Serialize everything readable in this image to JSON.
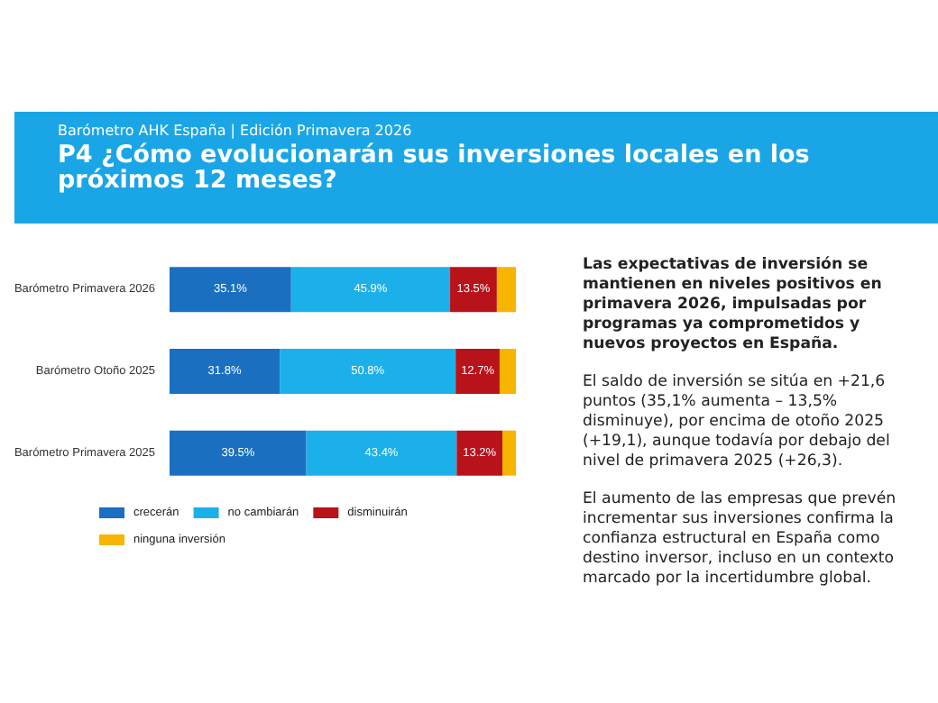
{
  "chart_data": {
    "type": "bar",
    "orientation": "horizontal",
    "stacked": true,
    "subtitle": "Barómetro AHK España | Edición Primavera 2026",
    "title": "P4 ¿Cómo evolucionarán sus inversiones locales en los próximos 12 meses?",
    "categories": [
      "Barómetro Primavera 2026",
      "Barómetro Otoño 2025",
      "Barómetro Primavera 2025"
    ],
    "xlim": [
      0,
      100
    ],
    "tick_labels": "y",
    "grid": false,
    "legend": "bottom",
    "series": [
      {
        "name": "crecerán",
        "color": "#1a6fc0",
        "values": [
          35.1,
          31.8,
          39.5
        ],
        "value_labels": [
          "35.1%",
          "31.8%",
          "39.5%"
        ]
      },
      {
        "name": "no cambiarán",
        "color": "#1cb0ea",
        "values": [
          45.9,
          50.8,
          43.4
        ],
        "value_labels": [
          "45.9%",
          "50.8%",
          "43.4%"
        ]
      },
      {
        "name": "disminuirán",
        "color": "#b8121b",
        "values": [
          13.5,
          12.7,
          13.2
        ],
        "value_labels": [
          "13.5%",
          "12.7%",
          "13.2%"
        ]
      },
      {
        "name": "ninguna inversión",
        "color": "#f7b500",
        "values": [
          5.5,
          4.7,
          3.9
        ],
        "value_labels": [
          null,
          null,
          null
        ]
      }
    ],
    "annotations": [
      "Las expectativas de inversión se mantienen en niveles positivos en primavera 2026, impulsadas por programas ya comprometidos y nuevos proyectos en España.",
      "El saldo de inversión se sitúa en +21,6 puntos (35,1% aumenta – 13,5% disminuye), por encima de otoño 2025 (+19,1), aunque todavía por debajo del nivel de primavera 2025 (+26,3).",
      "El aumento de las empresas que prevén incrementar sus inversiones confirma la confianza estructural en España como destino inversor, incluso en un contexto marcado por la incertidumbre global."
    ]
  }
}
